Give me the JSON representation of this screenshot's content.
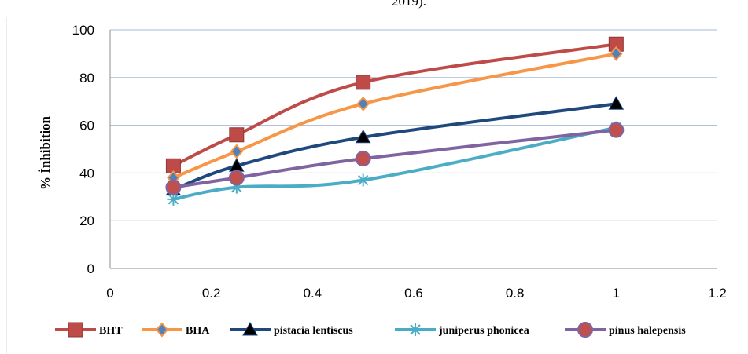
{
  "caption_fragment": "2019).",
  "chart_data": {
    "type": "line",
    "title": "",
    "xlabel": "",
    "ylabel": "% İnhibition",
    "xlim": [
      0,
      1.2
    ],
    "ylim": [
      0,
      100
    ],
    "x_ticks": [
      0,
      0.2,
      0.4,
      0.6,
      0.8,
      1,
      1.2
    ],
    "x_tick_labels": [
      "0",
      "0.2",
      "0.4",
      "0.6",
      "0.8",
      "1",
      "1.2"
    ],
    "y_ticks": [
      0,
      20,
      40,
      60,
      80,
      100
    ],
    "y_tick_labels": [
      "0",
      "20",
      "40",
      "60",
      "80",
      "100"
    ],
    "grid": "horizontal",
    "legend_position": "bottom",
    "x": [
      0.125,
      0.25,
      0.5,
      1
    ],
    "series": [
      {
        "name": "BHT",
        "values": [
          43,
          56,
          78,
          94
        ],
        "color": "#be4b48",
        "marker": "square"
      },
      {
        "name": "BHA",
        "values": [
          38,
          49,
          69,
          90
        ],
        "color": "#f79646",
        "marker": "diamond"
      },
      {
        "name": "pistacia lentiscus",
        "values": [
          33,
          43,
          55,
          69
        ],
        "color": "#1f497d",
        "marker": "triangle"
      },
      {
        "name": "juniperus phonicea",
        "values": [
          29,
          34,
          37,
          59
        ],
        "color": "#4bacc6",
        "marker": "star"
      },
      {
        "name": "pinus halepensis",
        "values": [
          34,
          38,
          46,
          58
        ],
        "color": "#8064a2",
        "marker": "circle"
      }
    ]
  }
}
